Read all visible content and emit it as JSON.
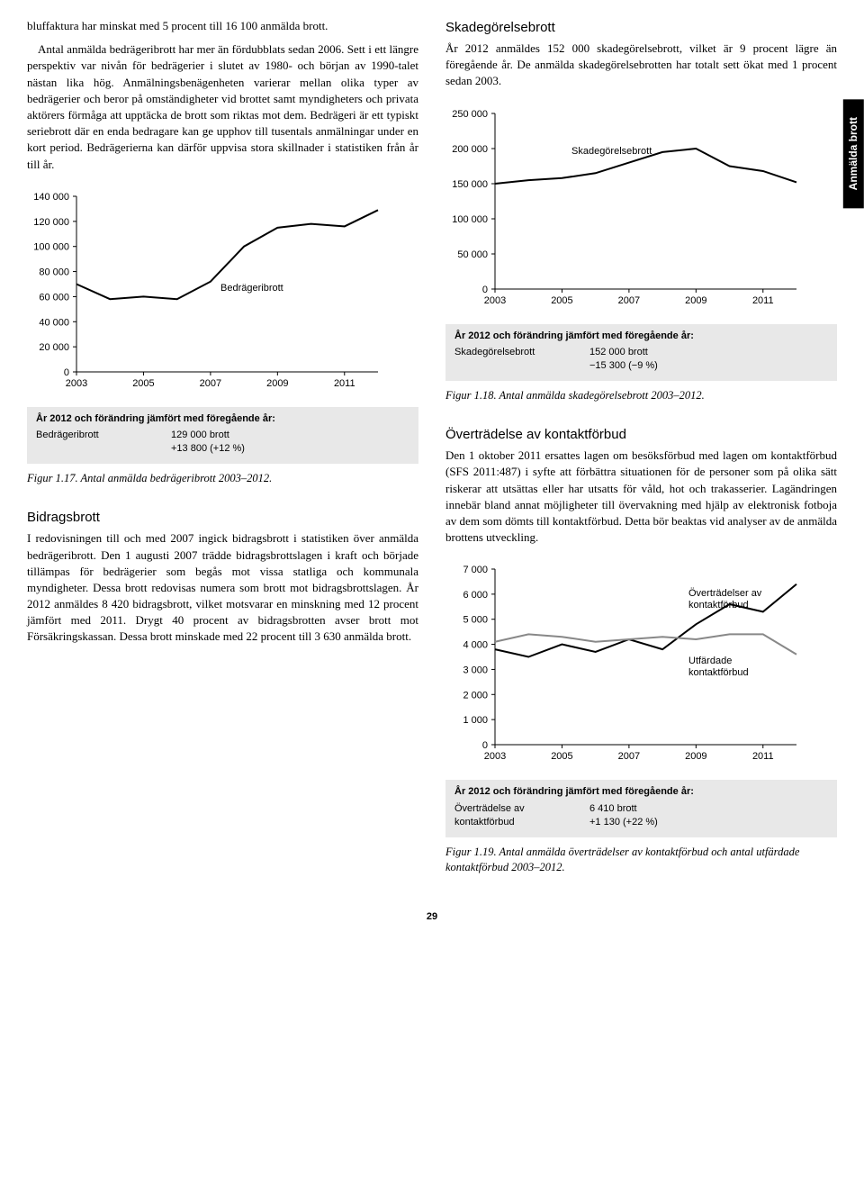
{
  "sideTab": "Anmälda brott",
  "pageNumber": "29",
  "left": {
    "intro": "bluffaktura har minskat med 5 procent till 16 100 anmälda brott.",
    "para1": "Antal anmälda bedrägeribrott har mer än fördubblats sedan 2006. Sett i ett längre perspektiv var nivån för bedrägerier i slutet av 1980- och början av 1990-talet nästan lika hög. Anmälningsbenägenheten varierar mellan olika typer av bedrägerier och beror på omständigheter vid brottet samt myndigheters och privata aktörers förmåga att upptäcka de brott som riktas mot dem. Bedrägeri är ett typiskt seriebrott där en enda bedragare kan ge upphov till tusentals anmälningar under en kort period. Bedrägerierna kan därför uppvisa stora skillnader i statistiken från år till år.",
    "chart1": {
      "label": "Bedrägeribrott",
      "yTicks": [
        0,
        20000,
        40000,
        60000,
        80000,
        100000,
        120000,
        140000
      ],
      "yTickLabels": [
        "0",
        "20 000",
        "40 000",
        "60 000",
        "80 000",
        "100 000",
        "120 000",
        "140 000"
      ],
      "xTicks": [
        2003,
        2005,
        2007,
        2009,
        2011
      ],
      "xTickLabels": [
        "2003",
        "2005",
        "2007",
        "2009",
        "2011"
      ],
      "xRange": [
        2003,
        2012
      ],
      "yRange": [
        0,
        140000
      ],
      "values": [
        70000,
        58000,
        60000,
        58000,
        72000,
        100000,
        115000,
        118000,
        116000,
        129000
      ],
      "stroke": "#000000",
      "strokeWidth": 2
    },
    "box1": {
      "title": "År 2012 och förändring jämfört med föregående år:",
      "label": "Bedrägeribrott",
      "value1": "129 000 brott",
      "value2": "+13 800 (+12 %)"
    },
    "fig1": "Figur 1.17. Antal anmälda bedrägeribrott 2003–2012.",
    "h2": "Bidragsbrott",
    "para2": "I redovisningen till och med 2007 ingick bidragsbrott i statistiken över anmälda bedrägeribrott. Den 1 augusti 2007 trädde bidragsbrottslagen i kraft och började tillämpas för bedrägerier som begås mot vissa statliga och kommunala myndigheter. Dessa brott redovisas numera som brott mot bidragsbrottslagen. År 2012 anmäldes 8 420 bidragsbrott, vilket motsvarar en minskning med 12 procent jämfört med 2011. Drygt 40 procent av bidragsbrotten avser brott mot Försäkringskassan. Dessa brott minskade med 22 procent till 3 630 anmälda brott."
  },
  "right": {
    "h1": "Skadegörelsebrott",
    "para1": "År 2012 anmäldes 152 000 skadegörelsebrott, vilket är 9 procent lägre än föregående år. De anmälda skadegörelsebrotten har totalt sett ökat med 1 procent sedan 2003.",
    "chart1": {
      "label": "Skadegörelsebrott",
      "yTicks": [
        0,
        50000,
        100000,
        150000,
        200000,
        250000
      ],
      "yTickLabels": [
        "0",
        "50 000",
        "100 000",
        "150 000",
        "200 000",
        "250 000"
      ],
      "xTicks": [
        2003,
        2005,
        2007,
        2009,
        2011
      ],
      "xTickLabels": [
        "2003",
        "2005",
        "2007",
        "2009",
        "2011"
      ],
      "xRange": [
        2003,
        2012
      ],
      "yRange": [
        0,
        250000
      ],
      "values": [
        150000,
        155000,
        158000,
        165000,
        180000,
        195000,
        200000,
        175000,
        168000,
        152000
      ],
      "stroke": "#000000",
      "strokeWidth": 2
    },
    "box1": {
      "title": "År 2012 och förändring jämfört med föregående år:",
      "label": "Skadegörelsebrott",
      "value1": "152 000 brott",
      "value2": "−15 300 (−9 %)"
    },
    "fig1": "Figur 1.18. Antal anmälda skadegörelsebrott 2003–2012.",
    "h2": "Överträdelse av kontaktförbud",
    "para2": "Den 1 oktober 2011 ersattes lagen om besöksförbud med lagen om kontaktförbud (SFS 2011:487) i syfte att förbättra situationen för de personer som på olika sätt riskerar att utsättas eller har utsatts för våld, hot och trakasserier. Lagändringen innebär bland annat möjligheter till övervakning med hjälp av elektronisk fotboja av dem som dömts till kontaktförbud. Detta bör beaktas vid analyser av de anmälda brottens utveckling.",
    "chart2": {
      "label1": "Överträdelser av kontaktförbud",
      "label2": "Utfärdade kontaktförbud",
      "yTicks": [
        0,
        1000,
        2000,
        3000,
        4000,
        5000,
        6000,
        7000
      ],
      "yTickLabels": [
        "0",
        "1 000",
        "2 000",
        "3 000",
        "4 000",
        "5 000",
        "6 000",
        "7 000"
      ],
      "xTicks": [
        2003,
        2005,
        2007,
        2009,
        2011
      ],
      "xTickLabels": [
        "2003",
        "2005",
        "2007",
        "2009",
        "2011"
      ],
      "xRange": [
        2003,
        2012
      ],
      "yRange": [
        0,
        7000
      ],
      "series1": [
        3800,
        3500,
        4000,
        3700,
        4200,
        3800,
        4800,
        5600,
        5300,
        6400
      ],
      "series2": [
        4100,
        4400,
        4300,
        4100,
        4200,
        4300,
        4200,
        4400,
        4400,
        3600
      ],
      "stroke1": "#000000",
      "stroke2": "#888888",
      "strokeWidth": 2
    },
    "box2": {
      "title": "År 2012 och förändring jämfört med föregående år:",
      "rows": [
        {
          "label": "Överträdelse av",
          "value": "6 410 brott"
        },
        {
          "label": "kontaktförbud",
          "value": "+1 130 (+22 %)"
        }
      ]
    },
    "fig2": "Figur 1.19. Antal anmälda överträdelser av kontaktförbud och antal utfärdade kontaktförbud 2003–2012."
  }
}
